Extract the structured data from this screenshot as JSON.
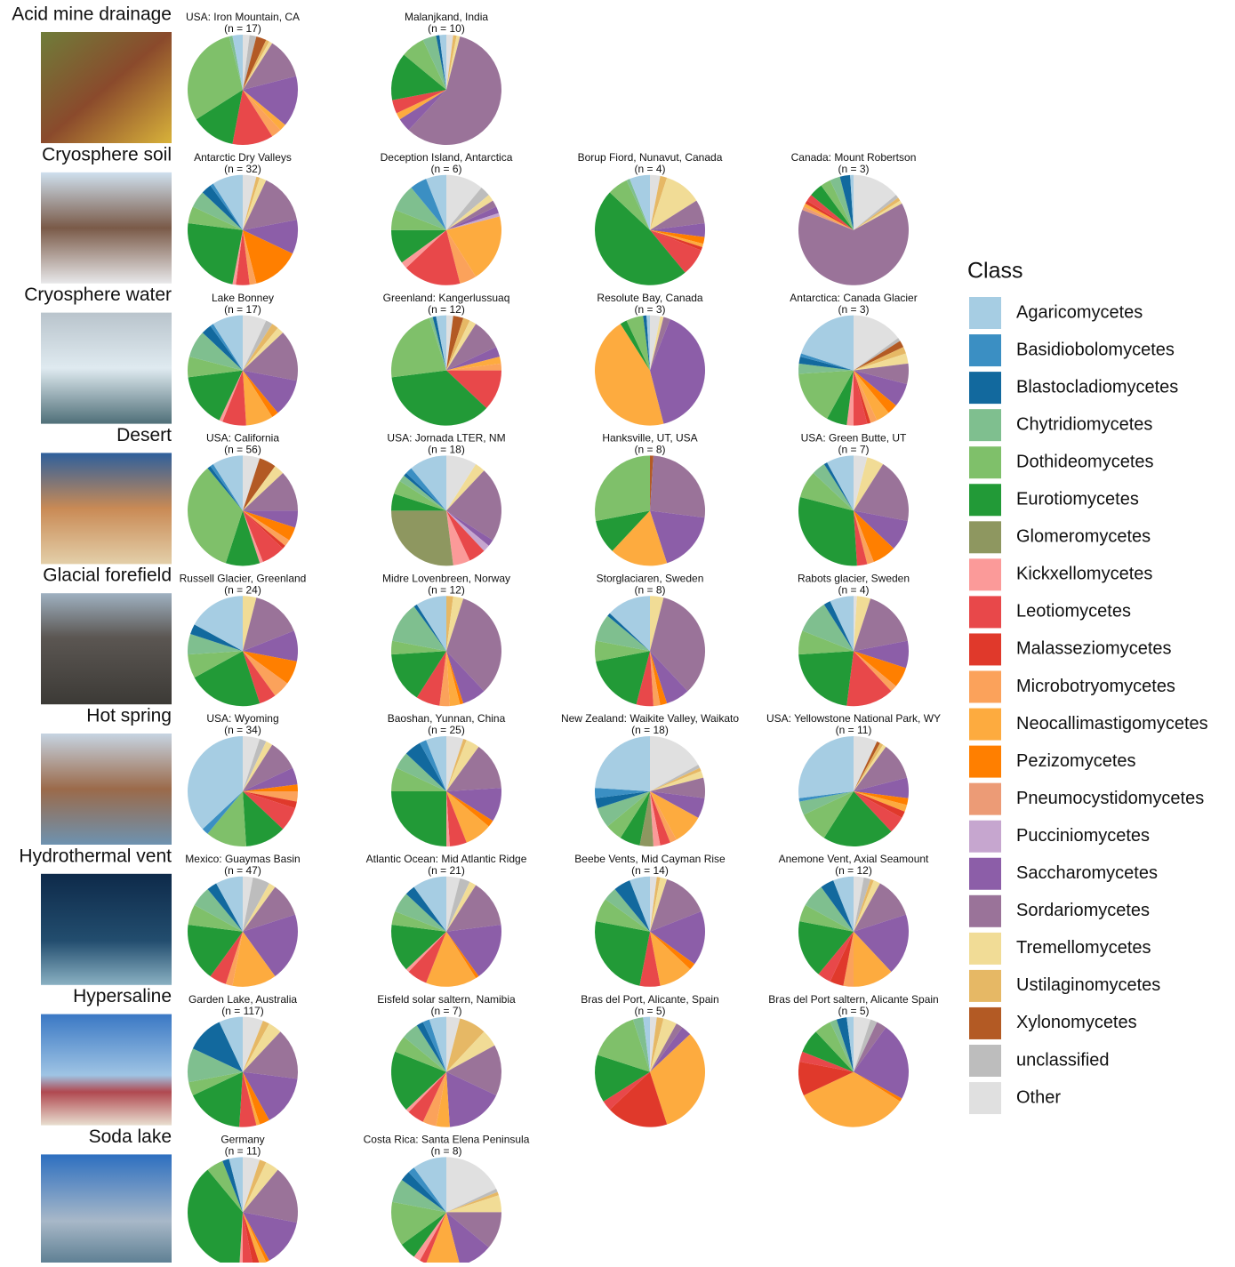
{
  "legend": {
    "title": "Class",
    "categories": [
      "Agaricomycetes",
      "Basidiobolomycetes",
      "Blastocladiomycetes",
      "Chytridiomycetes",
      "Dothideomycetes",
      "Eurotiomycetes",
      "Glomeromycetes",
      "Kickxellomycetes",
      "Leotiomycetes",
      "Malasseziomycetes",
      "Microbotryomycetes",
      "Neocallimastigomycetes",
      "Pezizomycetes",
      "Pneumocystidomycetes",
      "Pucciniomycetes",
      "Saccharomycetes",
      "Sordariomycetes",
      "Tremellomycetes",
      "Ustilaginomycetes",
      "Xylonomycetes",
      "unclassified",
      "Other"
    ],
    "colors": [
      "#a6cde3",
      "#3b8fc3",
      "#12699e",
      "#7fbf8f",
      "#7fc06a",
      "#229a37",
      "#8e9760",
      "#fb9a99",
      "#e8484a",
      "#e0392b",
      "#fba25b",
      "#fdab3f",
      "#ff7f00",
      "#ec9b76",
      "#c6a6cf",
      "#8c5ea8",
      "#9a7399",
      "#f1dc96",
      "#e6b865",
      "#b35a24",
      "#bdbdbd",
      "#e0e0e0"
    ]
  },
  "chart_data": [
    {
      "type": "pie",
      "environment": "Acid mine drainage",
      "title": "USA: Iron Mountain, CA",
      "subtitle": "(n = 17)",
      "values": [
        3,
        0,
        0,
        1,
        30,
        13,
        0,
        0,
        12,
        0,
        3,
        2,
        0,
        0,
        0,
        15,
        12,
        1,
        1,
        3,
        2,
        2
      ]
    },
    {
      "type": "pie",
      "environment": "Acid mine drainage",
      "title": "Malanjkand, India",
      "subtitle": "(n = 10)",
      "values": [
        2,
        0,
        1,
        4,
        7,
        14,
        0,
        0,
        4,
        0,
        0,
        2,
        0,
        0,
        0,
        4,
        58,
        1,
        1,
        0,
        0,
        2
      ]
    },
    {
      "type": "pie",
      "environment": "Cryosphere soil",
      "title": "Antarctic Dry Valleys",
      "subtitle": "(n = 32)",
      "values": [
        9,
        1,
        3,
        5,
        5,
        24,
        0,
        1,
        4,
        0,
        2,
        0,
        14,
        0,
        0,
        10,
        15,
        2,
        1,
        0,
        0,
        4
      ]
    },
    {
      "type": "pie",
      "environment": "Cryosphere soil",
      "title": "Deception Island, Antarctica",
      "subtitle": "(n = 6)",
      "values": [
        6,
        5,
        0,
        8,
        6,
        10,
        0,
        2,
        17,
        0,
        5,
        20,
        0,
        0,
        1,
        2,
        2,
        2,
        0,
        0,
        3,
        11
      ]
    },
    {
      "type": "pie",
      "environment": "Cryosphere soil",
      "title": "Borup Fiord, Nunavut, Canada",
      "subtitle": "(n = 4)",
      "values": [
        6,
        0,
        0,
        1,
        6,
        48,
        0,
        0,
        8,
        1,
        0,
        1,
        2,
        0,
        0,
        4,
        7,
        11,
        2,
        0,
        0,
        3
      ]
    },
    {
      "type": "pie",
      "environment": "Cryosphere soil",
      "title": "Canada: Mount Robertson",
      "subtitle": "(n = 3)",
      "values": [
        1,
        0,
        3,
        3,
        3,
        4,
        0,
        0,
        2,
        1,
        0,
        1,
        0,
        1,
        0,
        0,
        64,
        1,
        1,
        0,
        1,
        14
      ]
    },
    {
      "type": "pie",
      "environment": "Cryosphere water",
      "title": "Lake Bonney",
      "subtitle": "(n = 17)",
      "values": [
        9,
        1,
        3,
        8,
        6,
        16,
        0,
        1,
        7,
        0,
        0,
        8,
        2,
        0,
        0,
        11,
        15,
        2,
        2,
        0,
        2,
        7
      ]
    },
    {
      "type": "pie",
      "environment": "Cryosphere water",
      "title": "Greenland: Kangerlussuaq",
      "subtitle": "(n = 12)",
      "values": [
        3,
        0,
        1,
        1,
        22,
        36,
        0,
        0,
        12,
        0,
        2,
        2,
        0,
        0,
        0,
        3,
        9,
        2,
        2,
        3,
        0,
        2
      ]
    },
    {
      "type": "pie",
      "environment": "Cryosphere water",
      "title": "Resolute Bay, Canada",
      "subtitle": "(n = 3)",
      "values": [
        1,
        0,
        1,
        0,
        5,
        2,
        0,
        0,
        0,
        0,
        0,
        45,
        0,
        0,
        0,
        40,
        2,
        1,
        0,
        0,
        0,
        3
      ]
    },
    {
      "type": "pie",
      "environment": "Cryosphere water",
      "title": "Antarctica: Canada Glacier",
      "subtitle": "(n = 3)",
      "values": [
        20,
        1,
        2,
        3,
        16,
        6,
        0,
        2,
        4,
        1,
        2,
        4,
        3,
        0,
        0,
        7,
        6,
        3,
        2,
        2,
        1,
        15
      ]
    },
    {
      "type": "pie",
      "environment": "Desert",
      "title": "USA: California",
      "subtitle": "(n = 56)",
      "values": [
        9,
        1,
        1,
        0,
        34,
        10,
        0,
        1,
        7,
        1,
        2,
        0,
        4,
        0,
        0,
        5,
        12,
        3,
        0,
        5,
        0,
        5
      ]
    },
    {
      "type": "pie",
      "environment": "Desert",
      "title": "USA: Jornada LTER, NM",
      "subtitle": "(n = 18)",
      "values": [
        11,
        2,
        1,
        2,
        4,
        5,
        27,
        5,
        5,
        0,
        0,
        0,
        0,
        0,
        2,
        2,
        22,
        3,
        0,
        0,
        0,
        9
      ]
    },
    {
      "type": "pie",
      "environment": "Desert",
      "title": "Hanksville, UT, USA",
      "subtitle": "(n = 8)",
      "values": [
        0,
        0,
        0,
        0,
        28,
        10,
        0,
        0,
        0,
        0,
        0,
        17,
        0,
        0,
        0,
        18,
        26,
        0,
        0,
        1,
        0,
        0
      ]
    },
    {
      "type": "pie",
      "environment": "Desert",
      "title": "USA: Green Butte, UT",
      "subtitle": "(n = 7)",
      "values": [
        8,
        0,
        1,
        4,
        8,
        30,
        0,
        0,
        3,
        0,
        2,
        0,
        7,
        0,
        0,
        9,
        19,
        5,
        0,
        0,
        0,
        4
      ]
    },
    {
      "type": "pie",
      "environment": "Glacial forefield",
      "title": "Russell Glacier, Greenland",
      "subtitle": "(n = 24)",
      "values": [
        17,
        0,
        3,
        6,
        7,
        22,
        0,
        0,
        5,
        0,
        5,
        0,
        7,
        0,
        0,
        9,
        15,
        4,
        0,
        0,
        0,
        0
      ]
    },
    {
      "type": "pie",
      "environment": "Glacial forefield",
      "title": "Midre Lovenbreen, Norway",
      "subtitle": "(n = 12)",
      "values": [
        9,
        0,
        1,
        12,
        4,
        15,
        0,
        0,
        7,
        0,
        3,
        3,
        1,
        0,
        0,
        7,
        33,
        3,
        2,
        0,
        0,
        0
      ]
    },
    {
      "type": "pie",
      "environment": "Glacial forefield",
      "title": "Storglaciaren, Sweden",
      "subtitle": "(n = 8)",
      "values": [
        13,
        0,
        1,
        8,
        6,
        18,
        0,
        0,
        5,
        0,
        2,
        0,
        2,
        0,
        0,
        7,
        34,
        4,
        0,
        0,
        0,
        0
      ]
    },
    {
      "type": "pie",
      "environment": "Glacial forefield",
      "title": "Rabots glacier, Sweden",
      "subtitle": "(n = 4)",
      "values": [
        7,
        0,
        2,
        10,
        7,
        22,
        0,
        0,
        14,
        0,
        2,
        0,
        6,
        0,
        0,
        8,
        17,
        4,
        0,
        0,
        0,
        1
      ]
    },
    {
      "type": "pie",
      "environment": "Hot spring",
      "title": "USA: Wyoming",
      "subtitle": "(n = 34)",
      "values": [
        37,
        2,
        0,
        0,
        12,
        12,
        0,
        0,
        7,
        2,
        3,
        0,
        2,
        0,
        0,
        5,
        9,
        2,
        0,
        0,
        2,
        5
      ]
    },
    {
      "type": "pie",
      "environment": "Hot spring",
      "title": "Baoshan, Yunnan, China",
      "subtitle": "(n = 25)",
      "values": [
        6,
        2,
        5,
        5,
        7,
        25,
        0,
        1,
        5,
        0,
        0,
        8,
        2,
        0,
        0,
        10,
        14,
        4,
        1,
        0,
        0,
        5
      ]
    },
    {
      "type": "pie",
      "environment": "Hot spring",
      "title": "New Zealand: Waikite Valley, Waikato",
      "subtitle": "(n = 18)",
      "values": [
        24,
        3,
        3,
        6,
        5,
        6,
        4,
        2,
        3,
        0,
        2,
        9,
        0,
        0,
        0,
        6,
        6,
        2,
        1,
        0,
        1,
        17
      ]
    },
    {
      "type": "pie",
      "environment": "Hot spring",
      "title": "USA: Yellowstone National Park, WY",
      "subtitle": "(n = 11)",
      "values": [
        27,
        1,
        0,
        4,
        9,
        21,
        0,
        0,
        5,
        2,
        0,
        2,
        2,
        0,
        0,
        6,
        11,
        1,
        1,
        1,
        0,
        7
      ]
    },
    {
      "type": "pie",
      "environment": "Hydrothermal vent",
      "title": "Mexico: Guaymas Basin",
      "subtitle": "(n = 47)",
      "values": [
        8,
        0,
        3,
        6,
        6,
        17,
        0,
        0,
        5,
        0,
        2,
        13,
        0,
        0,
        0,
        20,
        10,
        2,
        0,
        0,
        5,
        3
      ]
    },
    {
      "type": "pie",
      "environment": "Hydrothermal vent",
      "title": "Atlantic Ocean: Mid Atlantic Ridge",
      "subtitle": "(n = 21)",
      "values": [
        10,
        0,
        3,
        6,
        4,
        14,
        0,
        1,
        6,
        0,
        0,
        15,
        1,
        0,
        0,
        17,
        14,
        2,
        0,
        0,
        3,
        4
      ]
    },
    {
      "type": "pie",
      "environment": "Hydrothermal vent",
      "title": "Beebe Vents, Mid Cayman Rise",
      "subtitle": "(n = 14)",
      "values": [
        6,
        0,
        5,
        4,
        7,
        25,
        0,
        0,
        6,
        0,
        0,
        10,
        2,
        0,
        0,
        16,
        14,
        2,
        1,
        0,
        0,
        2
      ]
    },
    {
      "type": "pie",
      "environment": "Hydrothermal vent",
      "title": "Anemone Vent, Axial Seamount",
      "subtitle": "(n = 12)",
      "values": [
        6,
        0,
        4,
        7,
        5,
        17,
        0,
        0,
        4,
        4,
        3,
        12,
        0,
        0,
        0,
        18,
        12,
        2,
        1,
        0,
        2,
        3
      ]
    },
    {
      "type": "pie",
      "environment": "Hypersaline",
      "title": "Garden Lake, Australia",
      "subtitle": "(n = 117)",
      "values": [
        7,
        0,
        11,
        10,
        4,
        17,
        0,
        0,
        5,
        0,
        0,
        1,
        3,
        0,
        0,
        15,
        15,
        4,
        2,
        0,
        0,
        6
      ]
    },
    {
      "type": "pie",
      "environment": "Hypersaline",
      "title": "Eisfeld solar saltern, Namibia",
      "subtitle": "(n = 7)",
      "values": [
        5,
        2,
        2,
        5,
        5,
        18,
        0,
        1,
        5,
        0,
        4,
        4,
        0,
        0,
        0,
        17,
        15,
        5,
        8,
        0,
        0,
        4
      ]
    },
    {
      "type": "pie",
      "environment": "Hypersaline",
      "title": "Bras del Port, Alicante, Spain",
      "subtitle": "(n = 5)",
      "values": [
        2,
        0,
        0,
        3,
        15,
        14,
        0,
        0,
        3,
        18,
        0,
        32,
        0,
        0,
        0,
        3,
        2,
        4,
        2,
        0,
        0,
        2
      ]
    },
    {
      "type": "pie",
      "environment": "Hypersaline",
      "title": "Bras del Port saltern, Alicante Spain",
      "subtitle": "(n = 5)",
      "values": [
        2,
        0,
        3,
        2,
        5,
        7,
        0,
        0,
        3,
        10,
        0,
        34,
        1,
        0,
        0,
        23,
        3,
        0,
        0,
        0,
        2,
        5
      ]
    },
    {
      "type": "pie",
      "environment": "Soda lake",
      "title": "Germany",
      "subtitle": "(n = 11)",
      "values": [
        4,
        0,
        2,
        0,
        5,
        38,
        0,
        1,
        3,
        2,
        0,
        2,
        1,
        0,
        0,
        14,
        17,
        4,
        2,
        0,
        0,
        5
      ]
    },
    {
      "type": "pie",
      "environment": "Soda lake",
      "title": "Costa Rica: Santa Elena Peninsula",
      "subtitle": "(n = 8)",
      "values": [
        10,
        2,
        3,
        7,
        13,
        5,
        0,
        2,
        2,
        0,
        0,
        10,
        0,
        0,
        0,
        10,
        11,
        5,
        1,
        0,
        1,
        18
      ]
    }
  ]
}
